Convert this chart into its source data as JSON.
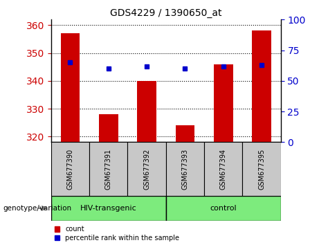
{
  "title": "GDS4229 / 1390650_at",
  "samples": [
    "GSM677390",
    "GSM677391",
    "GSM677392",
    "GSM677393",
    "GSM677394",
    "GSM677395"
  ],
  "count_values": [
    357,
    328,
    340,
    324,
    346,
    358
  ],
  "percentile_values": [
    65,
    60,
    62,
    60,
    62,
    63
  ],
  "ylim_left": [
    318,
    362
  ],
  "ylim_right": [
    0,
    100
  ],
  "yticks_left": [
    320,
    330,
    340,
    350,
    360
  ],
  "yticks_right": [
    0,
    25,
    50,
    75,
    100
  ],
  "bar_color": "#cc0000",
  "dot_color": "#0000cc",
  "left_tick_color": "#cc0000",
  "right_tick_color": "#0000cc",
  "group1_label": "HIV-transgenic",
  "group2_label": "control",
  "group1_indices": [
    0,
    1,
    2
  ],
  "group2_indices": [
    3,
    4,
    5
  ],
  "group_label": "genotype/variation",
  "legend_count": "count",
  "legend_percentile": "percentile rank within the sample",
  "bar_bottom": 318,
  "label_area_bg": "#c8c8c8",
  "group_bg": "#7deb7d"
}
